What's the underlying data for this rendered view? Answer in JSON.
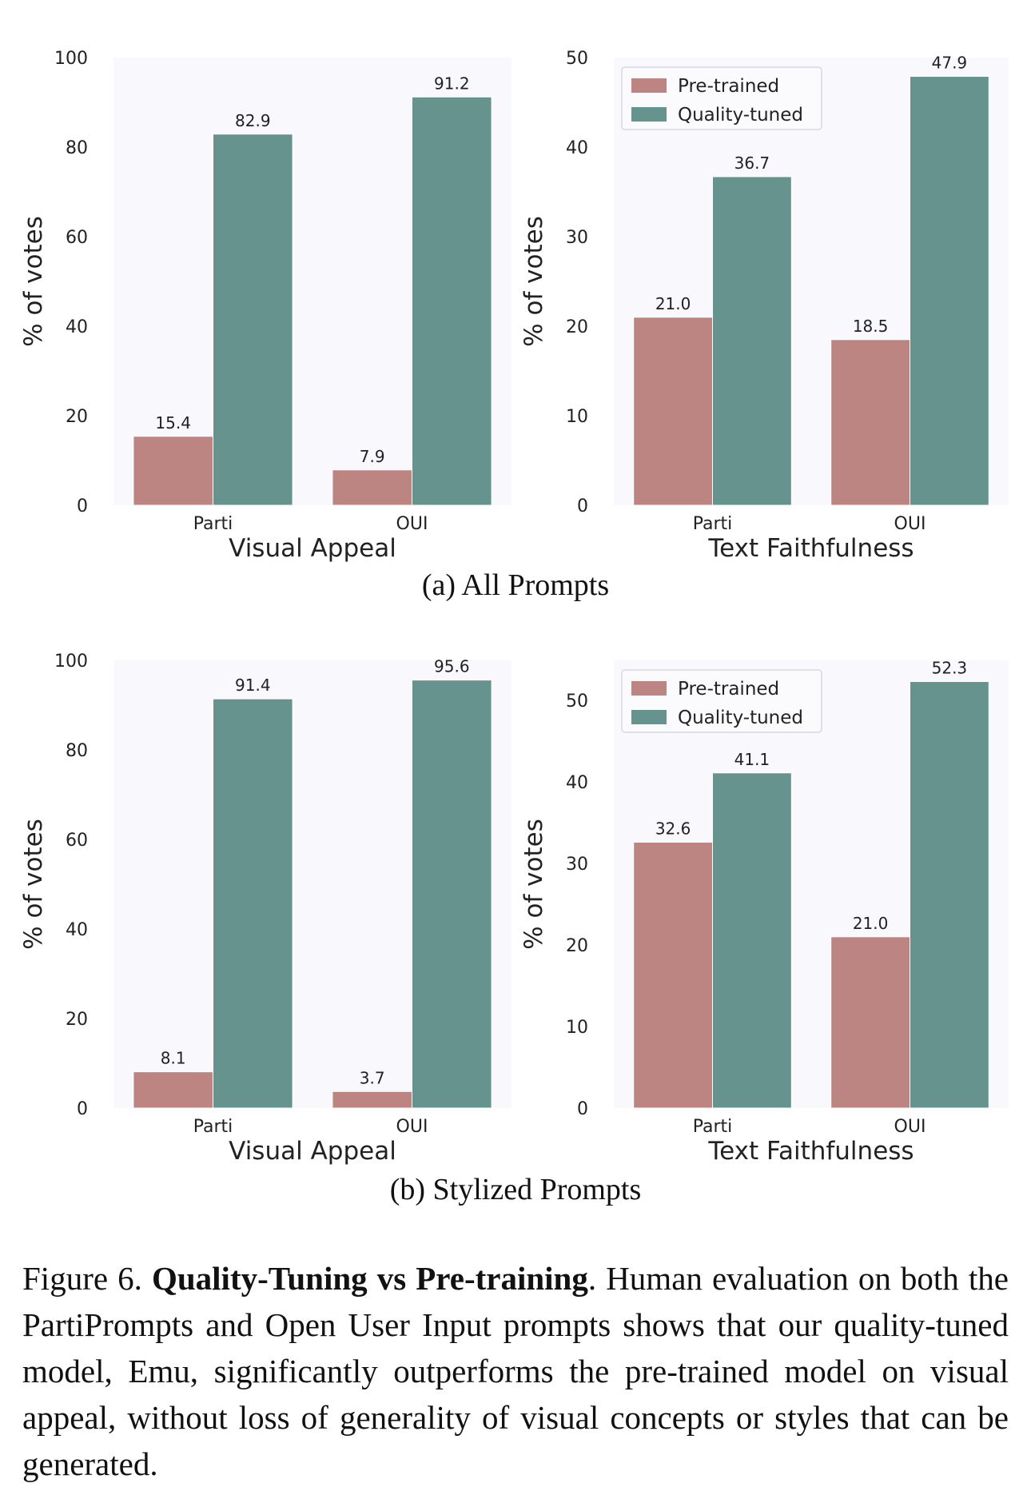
{
  "colors": {
    "pretrained": "#bc8582",
    "quality_tuned": "#67938f",
    "plot_bg": "#f8f8fd"
  },
  "sublabels": {
    "a": "(a) All Prompts",
    "b": "(b) Stylized Prompts"
  },
  "caption": {
    "prefix": "Figure 6. ",
    "bold": "Quality-Tuning vs Pre-training",
    "text": ". Human evaluation on both the PartiPrompts and Open User Input prompts shows that our quality-tuned model, Emu, significantly outperforms the pre-trained model on visual appeal, without loss of generality of visual concepts or styles that can be generated."
  },
  "chart_data": [
    {
      "type": "bar",
      "panel": "a",
      "categories": [
        "Parti",
        "OUI"
      ],
      "series": [
        {
          "name": "",
          "values": [
            15.4,
            7.9
          ]
        },
        {
          "name": "",
          "values": [
            82.9,
            91.2
          ]
        }
      ],
      "xlabel": "Visual Appeal",
      "ylabel": "% of votes",
      "ylim": [
        0,
        100
      ],
      "yticks": [
        0,
        20,
        40,
        60,
        80,
        100
      ],
      "legend": null,
      "grid": false
    },
    {
      "type": "bar",
      "panel": "a",
      "categories": [
        "Parti",
        "OUI"
      ],
      "series": [
        {
          "name": "Pre-trained",
          "values": [
            21.0,
            18.5
          ]
        },
        {
          "name": "Quality-tuned",
          "values": [
            36.7,
            47.9
          ]
        }
      ],
      "xlabel": "Text Faithfulness",
      "ylabel": "% of votes",
      "ylim": [
        0,
        50
      ],
      "yticks": [
        0,
        10,
        20,
        30,
        40,
        50
      ],
      "legend": "top-left",
      "grid": false
    },
    {
      "type": "bar",
      "panel": "b",
      "categories": [
        "Parti",
        "OUI"
      ],
      "series": [
        {
          "name": "",
          "values": [
            8.1,
            3.7
          ]
        },
        {
          "name": "",
          "values": [
            91.4,
            95.6
          ]
        }
      ],
      "xlabel": "Visual Appeal",
      "ylabel": "% of votes",
      "ylim": [
        0,
        100
      ],
      "yticks": [
        0,
        20,
        40,
        60,
        80,
        100
      ],
      "legend": null,
      "grid": false
    },
    {
      "type": "bar",
      "panel": "b",
      "categories": [
        "Parti",
        "OUI"
      ],
      "series": [
        {
          "name": "Pre-trained",
          "values": [
            32.6,
            21.0
          ]
        },
        {
          "name": "Quality-tuned",
          "values": [
            41.1,
            52.3
          ]
        }
      ],
      "xlabel": "Text Faithfulness",
      "ylabel": "% of votes",
      "ylim": [
        0,
        54.9
      ],
      "yticks": [
        0,
        10,
        20,
        30,
        40,
        50
      ],
      "legend": "top-left",
      "grid": false
    }
  ]
}
